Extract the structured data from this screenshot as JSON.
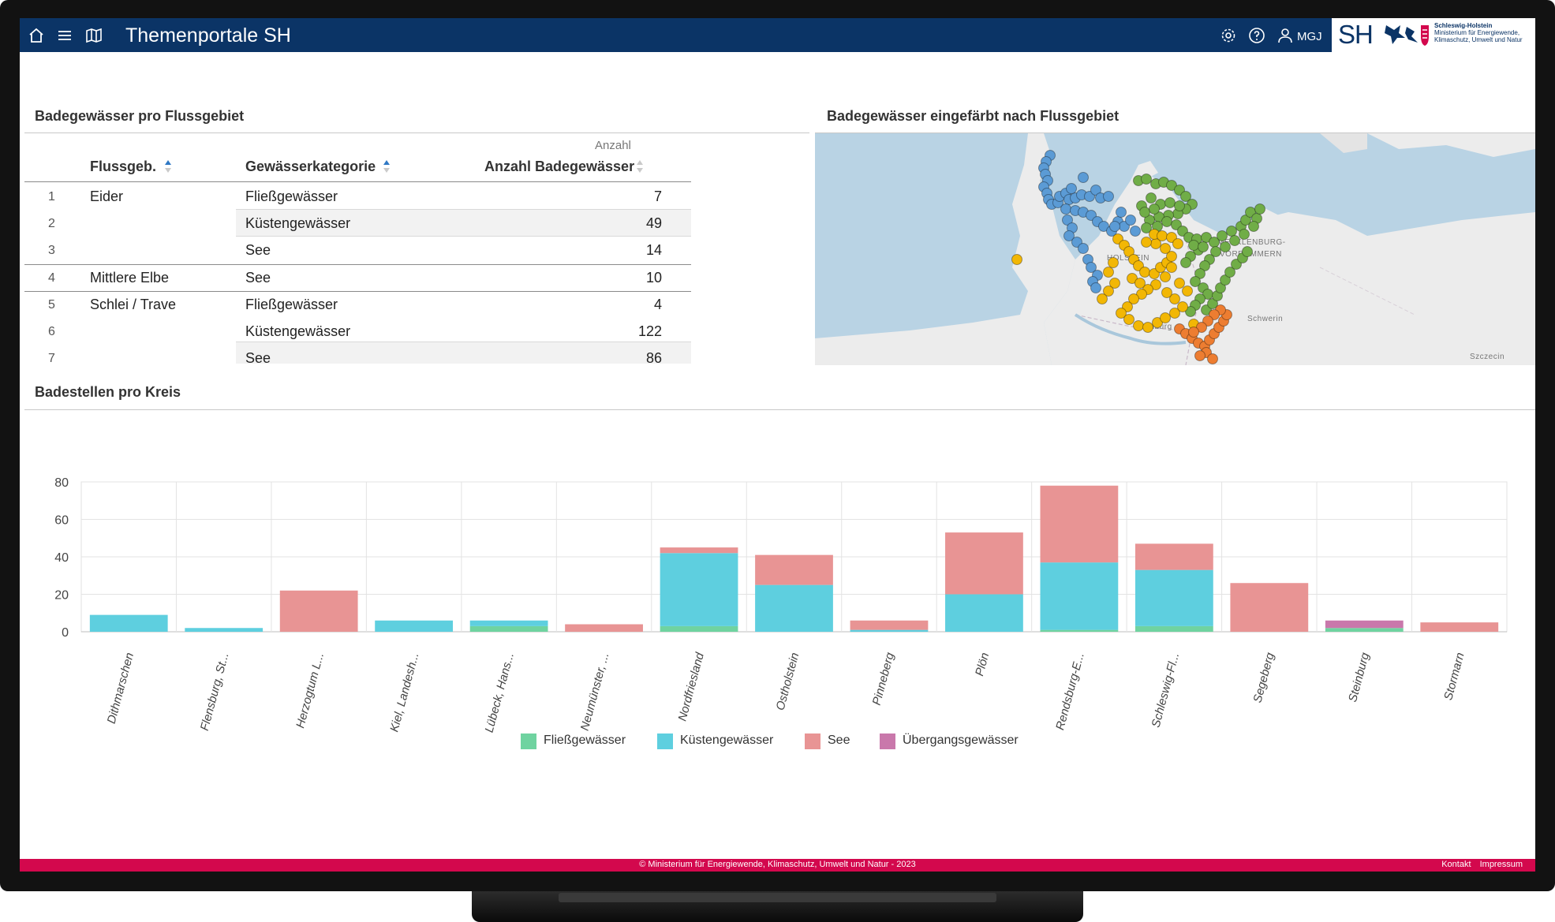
{
  "app": {
    "title": "Themenportale SH",
    "user": "MGJ"
  },
  "logo": {
    "sh": "SH",
    "line1": "Schleswig-Holstein",
    "line2": "Ministerium für Energiewende,",
    "line3": "Klimaschutz, Umwelt und Natur"
  },
  "icons": {
    "home": "home-icon",
    "menu": "menu-icon",
    "map": "map-icon",
    "settings": "gear-icon",
    "help": "help-icon",
    "user": "user-icon"
  },
  "table_section": {
    "title": "Badegewässer pro Flussgebiet",
    "unit_label": "Anzahl",
    "columns": [
      "Flussgeb.",
      "Gewässerkategorie",
      "Anzahl Badegewässer"
    ],
    "rows": [
      {
        "n": "1",
        "flussgebiet": "Eider",
        "kategorie": "Fließgewässer",
        "anzahl": "7"
      },
      {
        "n": "2",
        "flussgebiet": "",
        "kategorie": "Küstengewässer",
        "anzahl": "49"
      },
      {
        "n": "3",
        "flussgebiet": "",
        "kategorie": "See",
        "anzahl": "14"
      },
      {
        "n": "4",
        "flussgebiet": "Mittlere Elbe",
        "kategorie": "See",
        "anzahl": "10"
      },
      {
        "n": "5",
        "flussgebiet": "Schlei / Trave",
        "kategorie": "Fließgewässer",
        "anzahl": "4"
      },
      {
        "n": "6",
        "flussgebiet": "",
        "kategorie": "Küstengewässer",
        "anzahl": "122"
      },
      {
        "n": "7",
        "flussgebiet": "",
        "kategorie": "See",
        "anzahl": "86"
      }
    ]
  },
  "map_section": {
    "title": "Badegewässer eingefärbt nach Flussgebiet",
    "labels": [
      "MECKLENBURG-",
      "VORPOMMERN",
      "Schwerin",
      "Szczecin",
      "HOLSTEIN",
      "Hamburg"
    ],
    "point_colors": {
      "eider": "#5b9bd5",
      "schlei_trave": "#70ad47",
      "elbe": "#f2b705",
      "mittlere_elbe": "#ed7d31"
    }
  },
  "chart_section": {
    "title": "Badestellen pro Kreis"
  },
  "chart_data": {
    "type": "bar",
    "stacked": true,
    "categories": [
      "Dithmarschen",
      "Flensburg, St...",
      "Herzogtum L...",
      "Kiel, Landesh...",
      "Lübeck, Hans...",
      "Neumünster, ...",
      "Nordfriesland",
      "Ostholstein",
      "Pinneberg",
      "Plön",
      "Rendsburg-E...",
      "Schleswig-Fl...",
      "Segeberg",
      "Steinburg",
      "Stormarn"
    ],
    "series": [
      {
        "name": "Fließgewässer",
        "color": "#6fd3a0",
        "values": [
          0,
          0,
          0,
          0,
          3,
          0,
          3,
          0,
          0,
          0,
          1,
          3,
          0,
          2,
          0
        ]
      },
      {
        "name": "Küstengewässer",
        "color": "#5ecfdf",
        "values": [
          9,
          2,
          0,
          6,
          3,
          0,
          39,
          25,
          1,
          20,
          36,
          30,
          0,
          0,
          0
        ]
      },
      {
        "name": "See",
        "color": "#e89494",
        "values": [
          0,
          0,
          22,
          0,
          0,
          4,
          3,
          16,
          5,
          33,
          41,
          14,
          26,
          0,
          5
        ]
      },
      {
        "name": "Übergangsgewässer",
        "color": "#c978ab",
        "values": [
          0,
          0,
          0,
          0,
          0,
          0,
          0,
          0,
          0,
          0,
          0,
          0,
          0,
          4,
          0
        ]
      }
    ],
    "yticks": [
      "80",
      "60",
      "40",
      "20",
      "0"
    ],
    "ylim": [
      0,
      80
    ],
    "grid": true,
    "legend": "bottom"
  },
  "footer": {
    "copyright": "© Ministerium für Energiewende, Klimaschutz, Umwelt und Natur - 2023",
    "links": [
      "Kontakt",
      "Impressum"
    ]
  }
}
